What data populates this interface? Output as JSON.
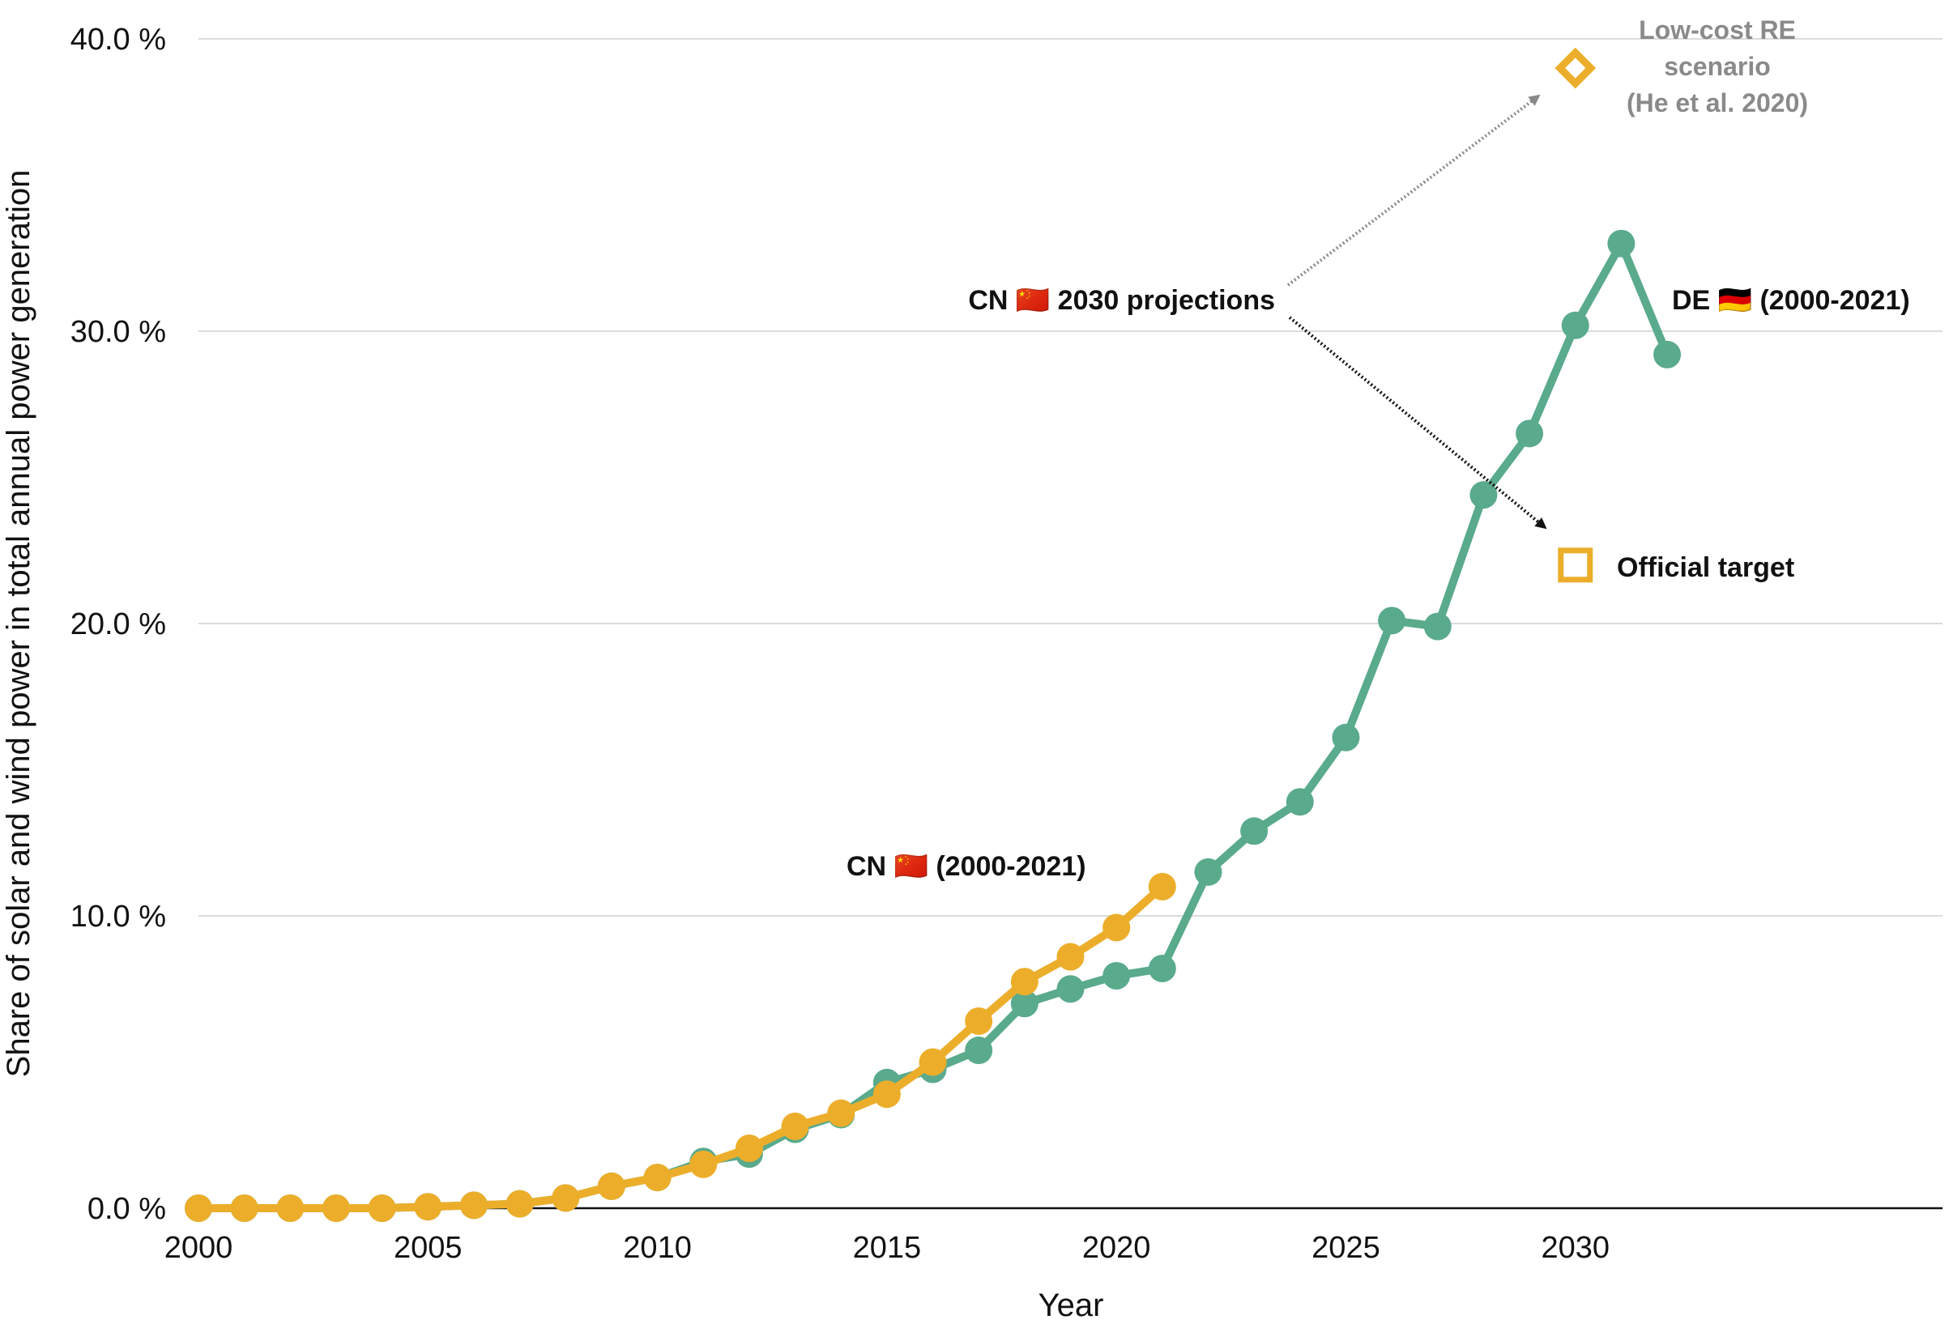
{
  "chart_data": {
    "type": "line",
    "title": "",
    "xlabel": "Year",
    "ylabel": "Share of solar and wind power in total annual power generation",
    "xlim": [
      2000,
      2038
    ],
    "ylim": [
      0,
      40
    ],
    "x_ticks": [
      2000,
      2005,
      2010,
      2015,
      2020,
      2025,
      2030
    ],
    "x_tick_labels": [
      "2000",
      "2005",
      "2010",
      "2015",
      "2020",
      "2025",
      "2030"
    ],
    "y_ticks": [
      0,
      10,
      20,
      30,
      40
    ],
    "y_tick_labels": [
      "0.0 %",
      "10.0 %",
      "20.0 %",
      "30.0 %",
      "40.0 %"
    ],
    "grid": true,
    "series": [
      {
        "name": "DE (2000-2021)",
        "color": "#5aaa8c",
        "x": [
          2000,
          2001,
          2002,
          2003,
          2004,
          2005,
          2006,
          2007,
          2008,
          2009,
          2010,
          2011,
          2012,
          2013,
          2014,
          2015,
          2016,
          2017,
          2018,
          2019,
          2020,
          2021,
          2022,
          2023,
          2024,
          2025,
          2026,
          2027,
          2028,
          2029,
          2030,
          2031,
          2032
        ],
        "values": [
          0.0,
          0.0,
          0.0,
          0.0,
          0.0,
          0.05,
          0.1,
          0.15,
          0.35,
          0.75,
          1.05,
          1.6,
          1.85,
          2.7,
          3.2,
          4.3,
          4.75,
          5.4,
          7.0,
          7.5,
          7.95,
          8.2,
          11.5,
          12.9,
          13.9,
          16.1,
          20.1,
          19.9,
          24.4,
          26.5,
          30.2,
          33.0,
          29.2
        ]
      },
      {
        "name": "CN (2000-2021)",
        "color": "#ecae2a",
        "x": [
          2000,
          2001,
          2002,
          2003,
          2004,
          2005,
          2006,
          2007,
          2008,
          2009,
          2010,
          2011,
          2012,
          2013,
          2014,
          2015,
          2016,
          2017,
          2018,
          2019,
          2020,
          2021
        ],
        "values": [
          0.0,
          0.0,
          0.0,
          0.0,
          0.0,
          0.05,
          0.1,
          0.15,
          0.35,
          0.75,
          1.05,
          1.5,
          2.05,
          2.8,
          3.25,
          3.9,
          5.0,
          6.4,
          7.75,
          8.6,
          9.6,
          11.0
        ]
      }
    ],
    "projections": [
      {
        "name": "Low-cost RE scenario (He et al. 2020)",
        "x": 2030,
        "value": 39.0,
        "marker": "diamond",
        "color": "#ecae2a"
      },
      {
        "name": "Official target",
        "x": 2030,
        "value": 22.0,
        "marker": "square",
        "color": "#ecae2a"
      }
    ],
    "annotations": {
      "cn_projections": "CN 🇨🇳 2030 projections",
      "de_label": "DE 🇩🇪 (2000-2021)",
      "cn_label": "CN 🇨🇳 (2000-2021)",
      "lowcost_lines": [
        "Low-cost RE",
        "scenario",
        "(He et al. 2020)"
      ],
      "official_target": "Official target"
    }
  }
}
